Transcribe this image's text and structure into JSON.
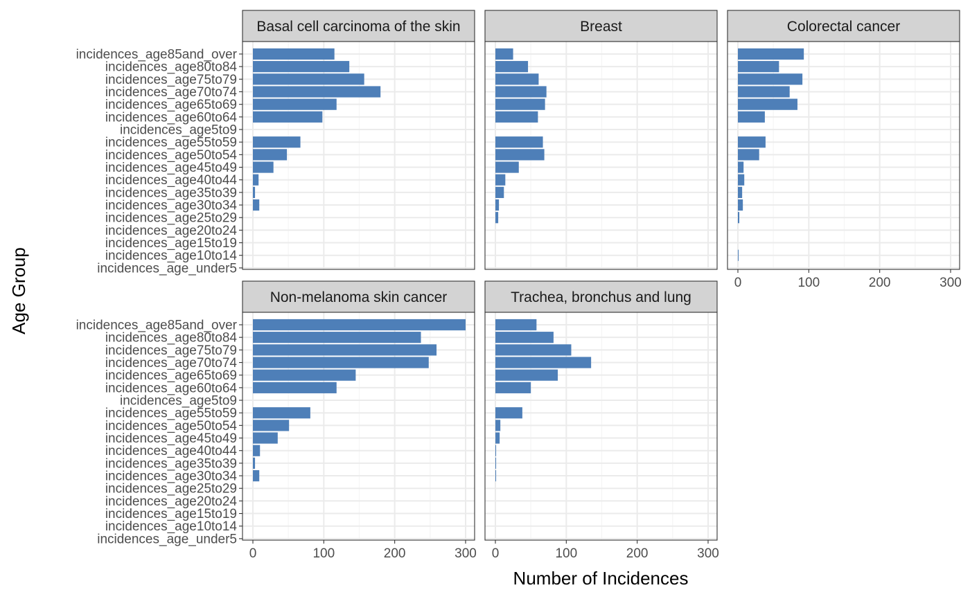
{
  "colors": {
    "bar": "#4e7fb8",
    "strip_fill": "#d3d3d3",
    "panel_border": "#333333",
    "grid_major": "#ebebeb",
    "grid_minor": "#f5f5f5",
    "tick_label": "#4d4d4d"
  },
  "chart_data": {
    "type": "bar",
    "orientation": "horizontal",
    "xlabel": "Number of Incidences",
    "ylabel": "Age Group",
    "xlim": [
      0,
      300
    ],
    "x_ticks": [
      0,
      100,
      200,
      300
    ],
    "grid": true,
    "categories": [
      "incidences_age85and_over",
      "incidences_age80to84",
      "incidences_age75to79",
      "incidences_age70to74",
      "incidences_age65to69",
      "incidences_age60to64",
      "incidences_age5to9",
      "incidences_age55to59",
      "incidences_age50to54",
      "incidences_age45to49",
      "incidences_age40to44",
      "incidences_age35to39",
      "incidences_age30to34",
      "incidences_age25to29",
      "incidences_age20to24",
      "incidences_age15to19",
      "incidences_age10to14",
      "incidences_age_under5"
    ],
    "facets": [
      {
        "name": "Basal cell carcinoma of the skin",
        "values": [
          115,
          136,
          157,
          180,
          118,
          98,
          0,
          67,
          48,
          29,
          8,
          3,
          9,
          0,
          0,
          0,
          0,
          0
        ]
      },
      {
        "name": "Breast",
        "values": [
          25,
          46,
          61,
          72,
          70,
          60,
          0,
          67,
          69,
          33,
          14,
          12,
          5,
          4,
          0,
          0,
          0,
          0
        ]
      },
      {
        "name": "Colorectal cancer",
        "values": [
          93,
          58,
          91,
          73,
          84,
          38,
          0,
          39,
          30,
          8,
          9,
          6,
          7,
          2,
          0,
          0,
          1,
          0
        ]
      },
      {
        "name": "Non-melanoma skin cancer",
        "values": [
          300,
          237,
          259,
          248,
          145,
          118,
          0,
          81,
          51,
          35,
          10,
          3,
          9,
          0,
          0,
          0,
          0,
          0
        ]
      },
      {
        "name": "Trachea, bronchus and lung",
        "values": [
          58,
          82,
          107,
          135,
          88,
          50,
          0,
          38,
          7,
          6,
          1,
          1,
          1,
          0,
          0,
          0,
          0,
          0
        ]
      }
    ]
  }
}
